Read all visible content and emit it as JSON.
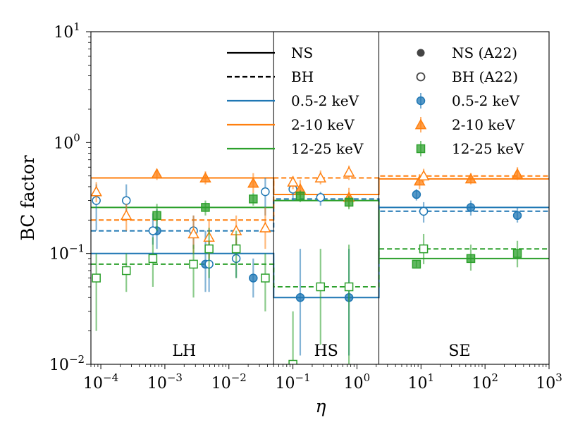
{
  "chart_data": {
    "type": "scatter",
    "title": "",
    "xlabel": "η",
    "ylabel": "BC factor",
    "xscale": "log",
    "yscale": "log",
    "xlim": [
      7e-05,
      1000
    ],
    "ylim": [
      0.01,
      10
    ],
    "x_ticks": [
      {
        "value": 0.0001,
        "base": "10",
        "exp": "−4"
      },
      {
        "value": 0.001,
        "base": "10",
        "exp": "−3"
      },
      {
        "value": 0.01,
        "base": "10",
        "exp": "−2"
      },
      {
        "value": 0.1,
        "base": "10",
        "exp": "−1"
      },
      {
        "value": 1,
        "base": "10",
        "exp": "0"
      },
      {
        "value": 10,
        "base": "10",
        "exp": "1"
      },
      {
        "value": 100,
        "base": "10",
        "exp": "2"
      },
      {
        "value": 1000,
        "base": "10",
        "exp": "3"
      }
    ],
    "y_ticks": [
      {
        "value": 0.01,
        "base": "10",
        "exp": "−2"
      },
      {
        "value": 0.1,
        "base": "10",
        "exp": "−1"
      },
      {
        "value": 1,
        "base": "10",
        "exp": "0"
      },
      {
        "value": 10,
        "base": "10",
        "exp": "1"
      }
    ],
    "state_boundaries": [
      0.05,
      2.2
    ],
    "regions": [
      {
        "label": "LH",
        "x": 0.002
      },
      {
        "label": "HS",
        "x": 0.33
      },
      {
        "label": "SE",
        "x": 40
      }
    ],
    "colors": {
      "soft": "#1f77b4",
      "hard": "#ff7f0e",
      "vhard": "#2ca02c"
    },
    "step_lines": [
      {
        "series": "soft",
        "source": "NS",
        "segments": [
          [
            7e-05,
            0.05,
            0.1
          ],
          [
            0.05,
            2.2,
            0.04
          ],
          [
            2.2,
            1000,
            0.26
          ]
        ]
      },
      {
        "series": "hard",
        "source": "NS",
        "segments": [
          [
            7e-05,
            0.05,
            0.48
          ],
          [
            0.05,
            2.2,
            0.34
          ],
          [
            2.2,
            1000,
            0.47
          ]
        ]
      },
      {
        "series": "vhard",
        "source": "NS",
        "segments": [
          [
            7e-05,
            0.05,
            0.26
          ],
          [
            0.05,
            2.2,
            0.3
          ],
          [
            2.2,
            1000,
            0.09
          ]
        ]
      },
      {
        "series": "soft",
        "source": "BH",
        "segments": [
          [
            7e-05,
            0.05,
            0.16
          ],
          [
            0.05,
            2.2,
            0.31
          ],
          [
            2.2,
            1000,
            0.24
          ]
        ]
      },
      {
        "series": "hard",
        "source": "BH",
        "segments": [
          [
            7e-05,
            0.05,
            0.2
          ],
          [
            0.05,
            2.2,
            0.48
          ],
          [
            2.2,
            1000,
            0.5
          ]
        ]
      },
      {
        "series": "vhard",
        "source": "BH",
        "segments": [
          [
            7e-05,
            0.05,
            0.08
          ],
          [
            0.05,
            2.2,
            0.05
          ],
          [
            2.2,
            1000,
            0.11
          ]
        ]
      }
    ],
    "points": [
      {
        "series": "soft",
        "source": "NS",
        "data": [
          [
            0.00075,
            0.16,
            0.11,
            0.25
          ],
          [
            0.0043,
            0.08,
            0.045,
            0.16
          ],
          [
            0.024,
            0.06,
            0.04,
            0.09
          ],
          [
            0.13,
            0.04,
            0.012,
            0.11
          ],
          [
            0.75,
            0.04,
            0.012,
            0.11
          ],
          [
            8.5,
            0.34,
            0.3,
            0.38
          ],
          [
            60,
            0.26,
            0.22,
            0.3
          ],
          [
            320,
            0.22,
            0.19,
            0.26
          ]
        ]
      },
      {
        "series": "soft",
        "source": "BH",
        "data": [
          [
            8.5e-05,
            0.3,
            0.16,
            0.42
          ],
          [
            0.00025,
            0.3,
            0.2,
            0.42
          ],
          [
            0.00065,
            0.16,
            0.12,
            0.23
          ],
          [
            0.0028,
            0.16,
            0.11,
            0.22
          ],
          [
            0.0049,
            0.08,
            0.045,
            0.13
          ],
          [
            0.013,
            0.09,
            0.06,
            0.14
          ],
          [
            0.037,
            0.36,
            0.22,
            0.48
          ],
          [
            0.1,
            0.38,
            0.3,
            0.45
          ],
          [
            0.27,
            0.32,
            0.27,
            0.36
          ],
          [
            11,
            0.24,
            0.19,
            0.29
          ]
        ]
      },
      {
        "series": "hard",
        "source": "NS",
        "data": [
          [
            0.00075,
            0.52,
            0.46,
            0.58
          ],
          [
            0.0043,
            0.48,
            0.42,
            0.55
          ],
          [
            0.024,
            0.43,
            0.35,
            0.53
          ],
          [
            0.13,
            0.38,
            0.32,
            0.46
          ],
          [
            0.75,
            0.32,
            0.26,
            0.39
          ],
          [
            9.5,
            0.45,
            0.38,
            0.52
          ],
          [
            60,
            0.47,
            0.42,
            0.53
          ],
          [
            320,
            0.52,
            0.46,
            0.6
          ]
        ]
      },
      {
        "series": "hard",
        "source": "BH",
        "data": [
          [
            8.5e-05,
            0.36,
            0.29,
            0.44
          ],
          [
            0.00025,
            0.22,
            0.16,
            0.28
          ],
          [
            0.0028,
            0.15,
            0.1,
            0.22
          ],
          [
            0.0049,
            0.14,
            0.09,
            0.2
          ],
          [
            0.013,
            0.16,
            0.11,
            0.22
          ],
          [
            0.037,
            0.17,
            0.11,
            0.26
          ],
          [
            0.1,
            0.44,
            0.38,
            0.5
          ],
          [
            0.27,
            0.48,
            0.42,
            0.56
          ],
          [
            0.75,
            0.54,
            0.46,
            0.62
          ],
          [
            11,
            0.5,
            0.44,
            0.58
          ]
        ]
      },
      {
        "series": "vhard",
        "source": "NS",
        "data": [
          [
            0.00075,
            0.22,
            0.16,
            0.28
          ],
          [
            0.0043,
            0.26,
            0.22,
            0.3
          ],
          [
            0.024,
            0.31,
            0.27,
            0.35
          ],
          [
            0.13,
            0.33,
            0.29,
            0.37
          ],
          [
            0.75,
            0.29,
            0.25,
            0.33
          ],
          [
            8.5,
            0.08,
            0.075,
            0.086
          ],
          [
            60,
            0.09,
            0.07,
            0.12
          ],
          [
            320,
            0.1,
            0.075,
            0.13
          ]
        ]
      },
      {
        "series": "vhard",
        "source": "BH",
        "data": [
          [
            8.5e-05,
            0.06,
            0.02,
            0.1
          ],
          [
            0.00025,
            0.07,
            0.045,
            0.1
          ],
          [
            0.00065,
            0.09,
            0.05,
            0.14
          ],
          [
            0.0028,
            0.08,
            0.04,
            0.12
          ],
          [
            0.0049,
            0.11,
            0.06,
            0.17
          ],
          [
            0.013,
            0.11,
            0.06,
            0.16
          ],
          [
            0.037,
            0.06,
            0.03,
            0.1
          ],
          [
            0.1,
            0.01,
            0.01,
            0.03
          ],
          [
            0.27,
            0.05,
            0.015,
            0.11
          ],
          [
            0.75,
            0.05,
            0.01,
            0.12
          ],
          [
            11,
            0.11,
            0.08,
            0.15
          ]
        ]
      }
    ],
    "legend_lines": [
      {
        "label": "NS",
        "style": "solid",
        "color": "#000000"
      },
      {
        "label": "BH",
        "style": "dashed",
        "color": "#000000"
      },
      {
        "label": "0.5-2 keV",
        "style": "solid",
        "color": "#1f77b4"
      },
      {
        "label": "2-10 keV",
        "style": "solid",
        "color": "#ff7f0e"
      },
      {
        "label": "12-25 keV",
        "style": "solid",
        "color": "#2ca02c"
      }
    ],
    "legend_markers": [
      {
        "label": "NS (A22)",
        "marker": "circle-filled",
        "color": "#444444"
      },
      {
        "label": "BH (A22)",
        "marker": "circle-open",
        "color": "#444444"
      },
      {
        "label": "0.5-2 keV",
        "marker": "circle",
        "color": "#1f77b4"
      },
      {
        "label": "2-10 keV",
        "marker": "triangle",
        "color": "#ff7f0e"
      },
      {
        "label": "12-25 keV",
        "marker": "square",
        "color": "#2ca02c"
      }
    ]
  }
}
